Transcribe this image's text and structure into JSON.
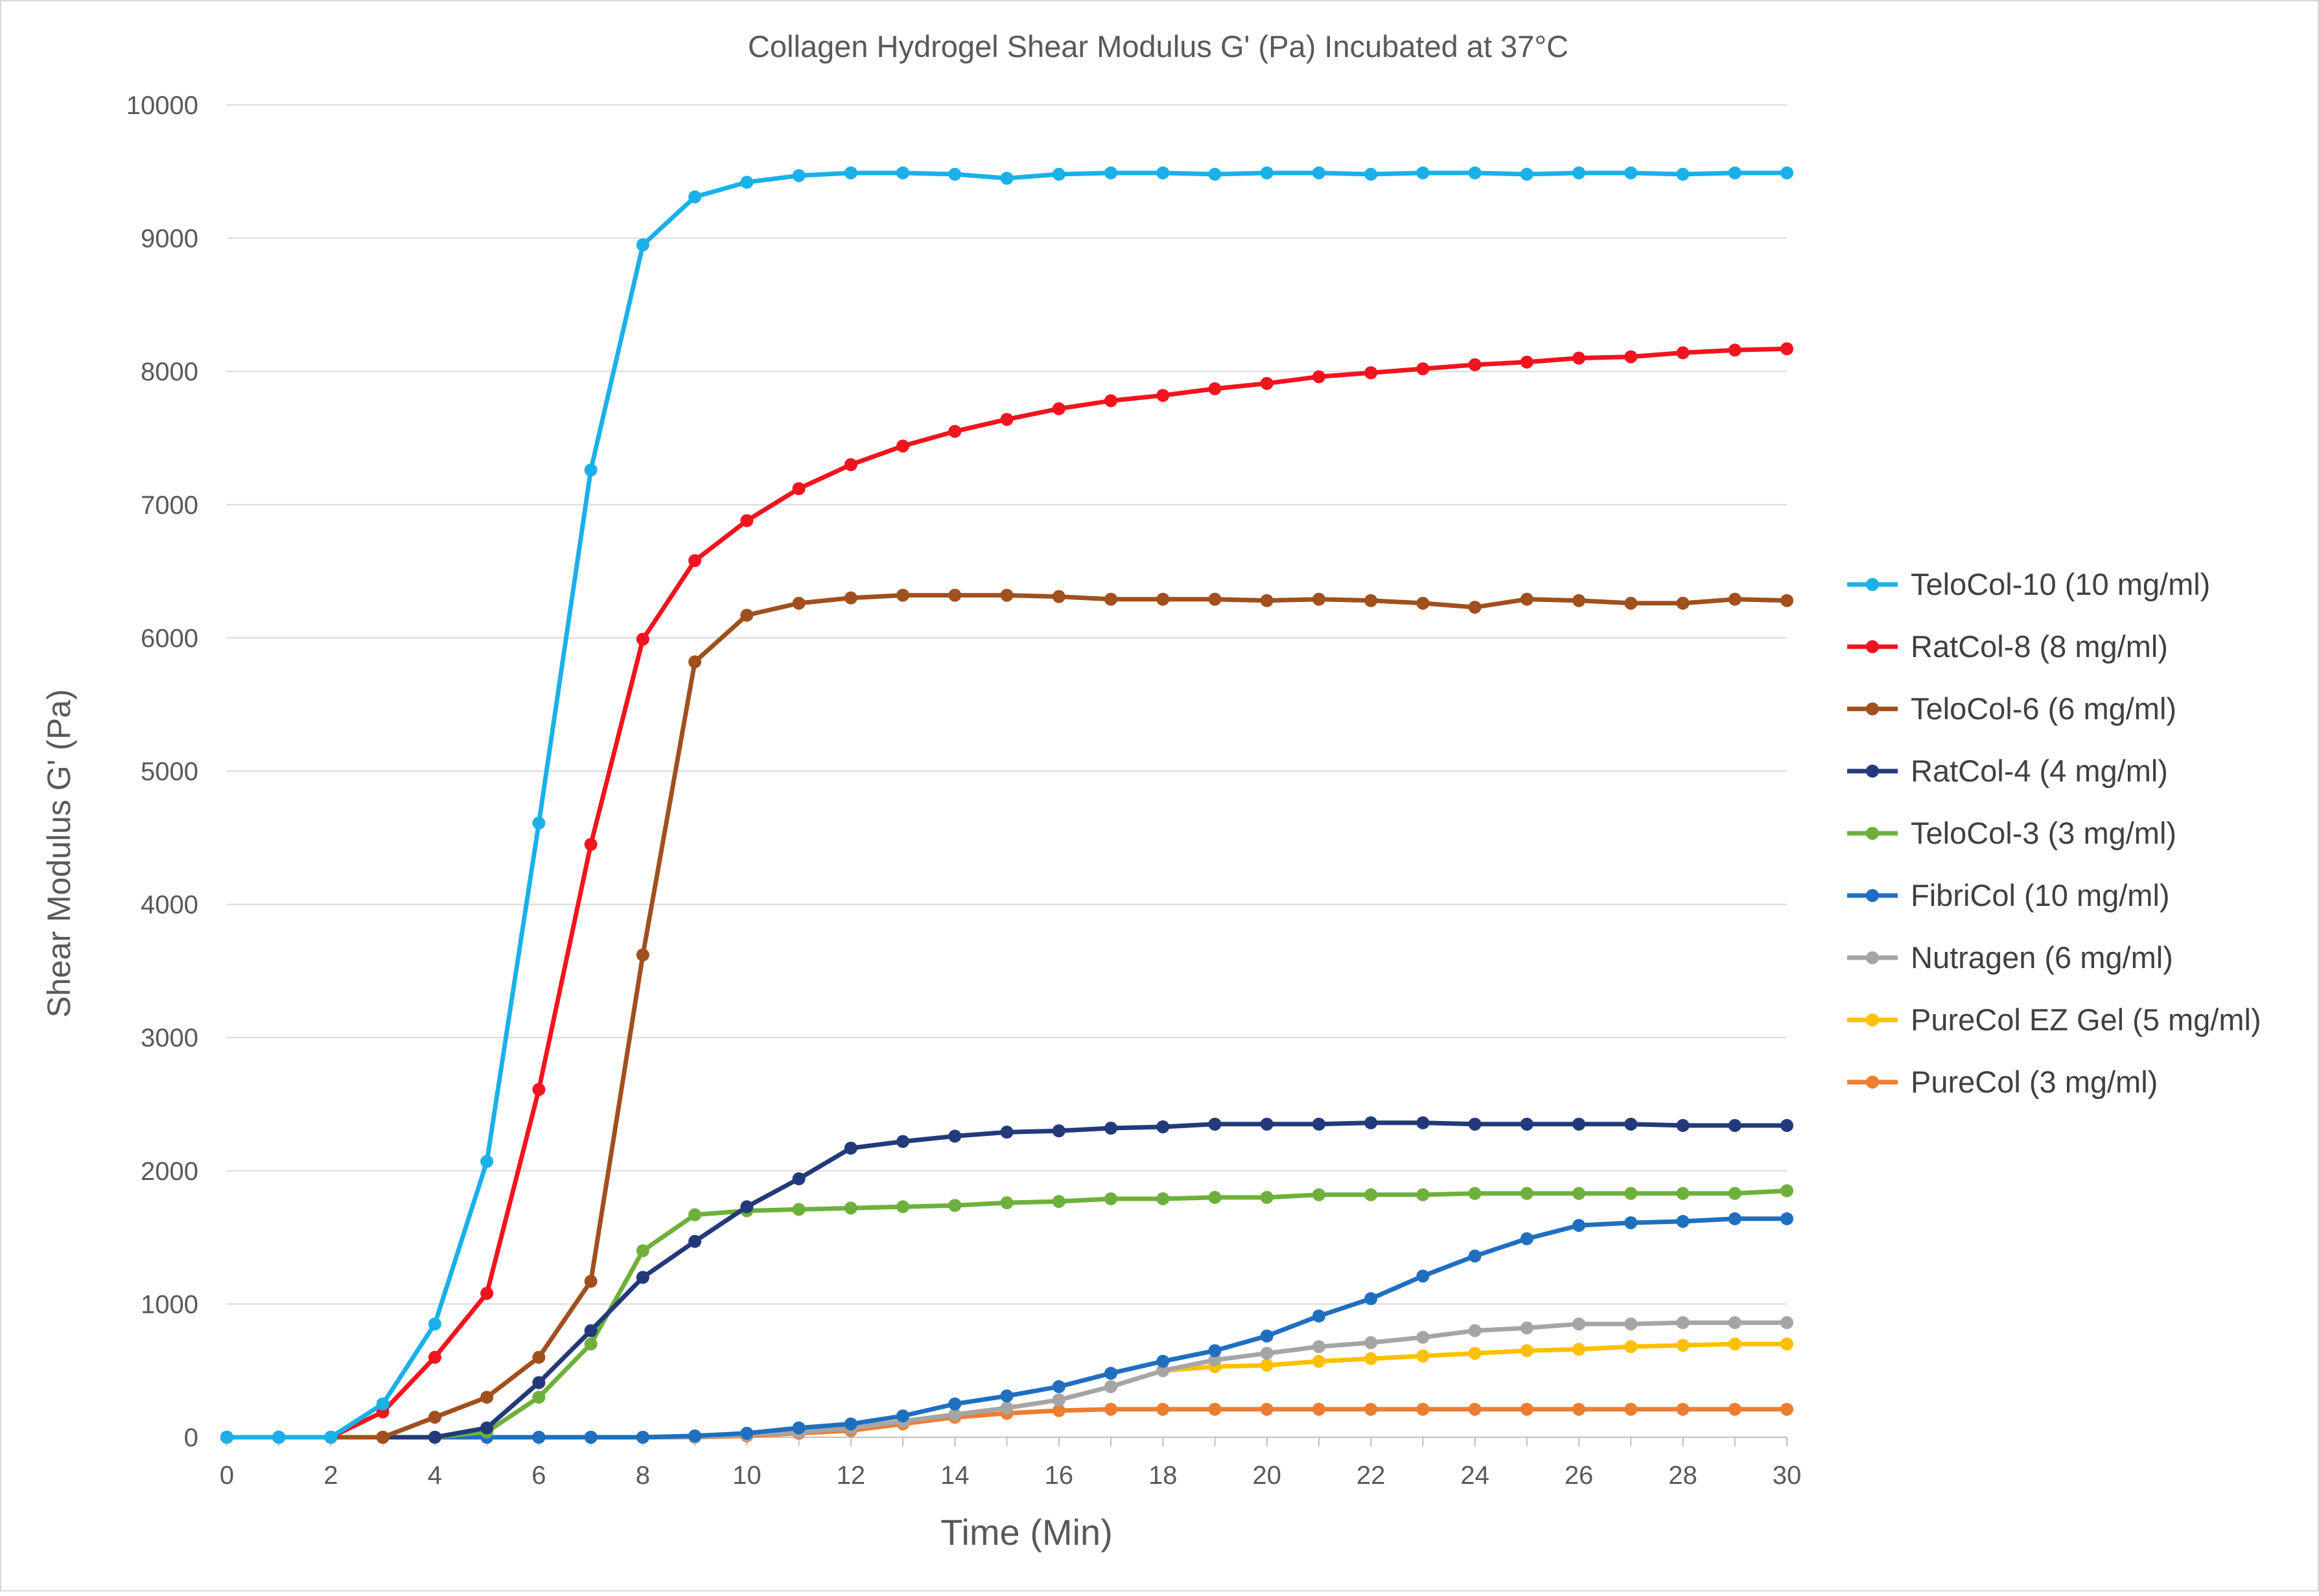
{
  "chart_data": {
    "type": "line",
    "title": "Collagen Hydrogel Shear Modulus G' (Pa) Incubated at 37°C",
    "xlabel": "Time (Min)",
    "ylabel": "Shear Modulus G' (Pa)",
    "xlim": [
      0,
      30
    ],
    "ylim": [
      0,
      10000
    ],
    "x_ticks": [
      "0",
      "2",
      "4",
      "6",
      "8",
      "10",
      "12",
      "14",
      "16",
      "18",
      "20",
      "22",
      "24",
      "26",
      "28",
      "30"
    ],
    "y_ticks": [
      "0",
      "1000",
      "2000",
      "3000",
      "4000",
      "5000",
      "6000",
      "7000",
      "8000",
      "9000",
      "10000"
    ],
    "grid": "horizontal",
    "legend_position": "right",
    "x": [
      0,
      1,
      2,
      3,
      4,
      5,
      6,
      7,
      8,
      9,
      10,
      11,
      12,
      13,
      14,
      15,
      16,
      17,
      18,
      19,
      20,
      21,
      22,
      23,
      24,
      25,
      26,
      27,
      28,
      29,
      30
    ],
    "series": [
      {
        "name": "TeloCol-10 (10 mg/ml)",
        "color": "#1ab0ea",
        "values": [
          0,
          0,
          0,
          250,
          850,
          2070,
          4610,
          7260,
          8950,
          9310,
          9420,
          9470,
          9490,
          9490,
          9480,
          9450,
          9480,
          9490,
          9490,
          9480,
          9490,
          9490,
          9480,
          9490,
          9490,
          9480,
          9490,
          9490,
          9480,
          9490,
          9490
        ]
      },
      {
        "name": "RatCol-8 (8 mg/ml)",
        "color": "#f0141e",
        "values": [
          0,
          0,
          0,
          190,
          600,
          1080,
          2610,
          4450,
          5990,
          6580,
          6880,
          7120,
          7300,
          7440,
          7550,
          7640,
          7720,
          7780,
          7820,
          7870,
          7910,
          7960,
          7990,
          8020,
          8050,
          8070,
          8100,
          8110,
          8140,
          8160,
          8170
        ]
      },
      {
        "name": "TeloCol-6 (6 mg/ml)",
        "color": "#a0501e",
        "values": [
          0,
          0,
          0,
          0,
          150,
          300,
          600,
          1170,
          3620,
          5820,
          6170,
          6260,
          6300,
          6320,
          6320,
          6320,
          6310,
          6290,
          6290,
          6290,
          6280,
          6290,
          6280,
          6260,
          6230,
          6290,
          6280,
          6260,
          6260,
          6290,
          6280
        ]
      },
      {
        "name": "RatCol-4 (4 mg/ml)",
        "color": "#223a7a",
        "values": [
          0,
          0,
          0,
          0,
          0,
          70,
          410,
          800,
          1200,
          1470,
          1730,
          1940,
          2170,
          2220,
          2260,
          2290,
          2300,
          2320,
          2330,
          2350,
          2350,
          2350,
          2360,
          2360,
          2350,
          2350,
          2350,
          2350,
          2340,
          2340,
          2340
        ]
      },
      {
        "name": "TeloCol-3 (3 mg/ml)",
        "color": "#6eb03c",
        "values": [
          0,
          0,
          0,
          0,
          0,
          40,
          300,
          700,
          1400,
          1670,
          1700,
          1710,
          1720,
          1730,
          1740,
          1760,
          1770,
          1790,
          1790,
          1800,
          1800,
          1820,
          1820,
          1820,
          1830,
          1830,
          1830,
          1830,
          1830,
          1830,
          1850
        ]
      },
      {
        "name": "FibriCol (10 mg/ml)",
        "color": "#1f6fc0",
        "values": [
          0,
          0,
          0,
          0,
          0,
          0,
          0,
          0,
          0,
          10,
          30,
          70,
          100,
          160,
          250,
          310,
          380,
          480,
          570,
          650,
          760,
          910,
          1040,
          1210,
          1360,
          1490,
          1590,
          1610,
          1620,
          1640,
          1640
        ]
      },
      {
        "name": "Nutragen (6 mg/ml)",
        "color": "#a5a5a5",
        "values": [
          0,
          0,
          0,
          0,
          0,
          0,
          0,
          0,
          0,
          0,
          20,
          40,
          70,
          120,
          170,
          220,
          280,
          380,
          500,
          580,
          630,
          680,
          710,
          750,
          800,
          820,
          850,
          850,
          860,
          860,
          860
        ]
      },
      {
        "name": "PureCol EZ Gel (5 mg/ml)",
        "color": "#ffc000",
        "values": [
          0,
          0,
          0,
          0,
          0,
          0,
          0,
          0,
          0,
          0,
          20,
          40,
          70,
          120,
          170,
          220,
          280,
          380,
          500,
          530,
          540,
          570,
          590,
          610,
          630,
          650,
          660,
          680,
          690,
          700,
          700
        ]
      },
      {
        "name": "PureCol (3 mg/ml)",
        "color": "#ed7d31",
        "values": [
          0,
          0,
          0,
          0,
          0,
          0,
          0,
          0,
          0,
          0,
          10,
          30,
          50,
          100,
          150,
          180,
          200,
          210,
          210,
          210,
          210,
          210,
          210,
          210,
          210,
          210,
          210,
          210,
          210,
          210,
          210
        ]
      }
    ]
  }
}
